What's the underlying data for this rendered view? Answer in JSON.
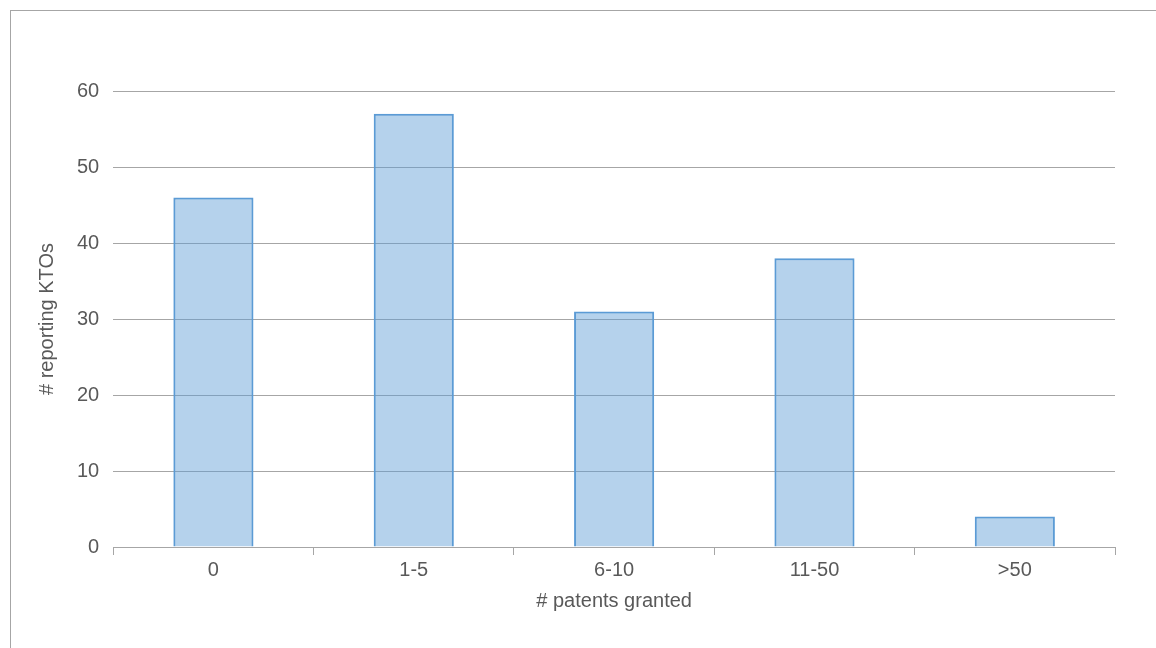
{
  "chart_data": {
    "type": "bar",
    "xlabel": "# patents granted",
    "ylabel": "# reporting KTOs",
    "categories": [
      "0",
      "1-5",
      "6-10",
      "11-50",
      ">50"
    ],
    "values": [
      46,
      57,
      31,
      38,
      4
    ],
    "color": "#5b9bd5",
    "ylim": [
      0,
      60
    ],
    "yticks": [
      0,
      10,
      20,
      30,
      40,
      50,
      60
    ],
    "grid": "y"
  }
}
